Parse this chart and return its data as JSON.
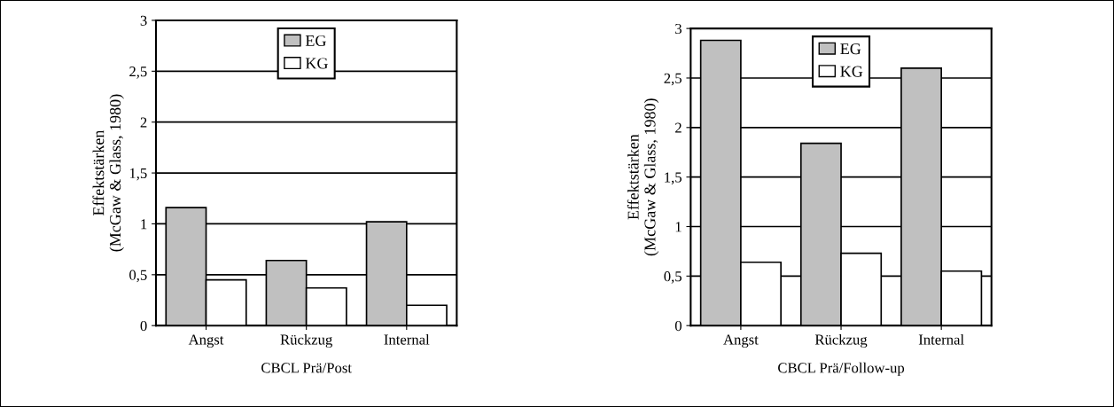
{
  "chart_data": [
    {
      "type": "bar",
      "xlabel": "CBCL Prä/Post",
      "ylabel": "Effektstärken\n(McGaw & Glass, 1980)",
      "categories": [
        "Angst",
        "Rückzug",
        "Internal"
      ],
      "series": [
        {
          "name": "EG",
          "color": "#c0c0c0",
          "values": [
            1.16,
            0.64,
            1.02
          ]
        },
        {
          "name": "KG",
          "color": "#ffffff",
          "values": [
            0.45,
            0.37,
            0.2
          ]
        }
      ],
      "ylim": [
        0,
        3
      ],
      "yticks": [
        0,
        {
          "value": 0.5,
          "label": "0,5"
        },
        1,
        {
          "value": 1.5,
          "label": "1,5"
        },
        2,
        {
          "value": 2.5,
          "label": "2,5"
        },
        3
      ],
      "grid": "y",
      "legend": "top"
    },
    {
      "type": "bar",
      "xlabel": "CBCL Prä/Follow-up",
      "ylabel": "Effektstärken\n(McGaw & Glass, 1980)",
      "categories": [
        "Angst",
        "Rückzug",
        "Internal"
      ],
      "series": [
        {
          "name": "EG",
          "color": "#c0c0c0",
          "values": [
            2.88,
            1.84,
            2.6
          ]
        },
        {
          "name": "KG",
          "color": "#ffffff",
          "values": [
            0.64,
            0.73,
            0.55
          ]
        }
      ],
      "ylim": [
        0,
        3
      ],
      "yticks": [
        0,
        {
          "value": 0.5,
          "label": "0,5"
        },
        1,
        {
          "value": 1.5,
          "label": "1,5"
        },
        2,
        {
          "value": 2.5,
          "label": "2,5"
        },
        3
      ],
      "grid": "y",
      "legend": "top"
    }
  ]
}
